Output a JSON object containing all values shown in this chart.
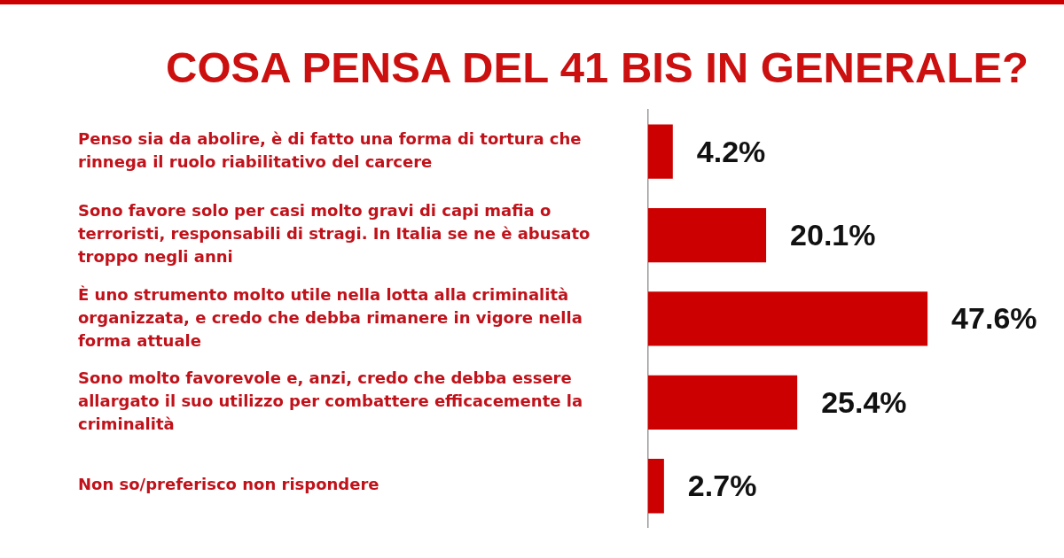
{
  "chart_data": {
    "type": "bar",
    "orientation": "horizontal",
    "title": "COSA PENSA DEL 41 BIS IN GENERALE?",
    "categories": [
      "Penso sia da abolire, è di fatto una forma di tortura che rinnega il ruolo riabilitativo del carcere",
      "Sono favore solo per casi molto gravi di capi mafia o terroristi, responsabili di stragi. In Italia se ne è abusato troppo negli anni",
      "È uno strumento molto utile nella lotta alla criminalità organizzata, e credo che debba rimanere in vigore nella forma attuale",
      "Sono molto favorevole e, anzi, credo che debba essere allargato il suo utilizzo per combattere efficacemente la criminalità",
      "Non so/preferisco non rispondere"
    ],
    "values": [
      4.2,
      20.1,
      47.6,
      25.4,
      2.7
    ],
    "color": "#cc0000",
    "value_labels": [
      "4.2%",
      "20.1%",
      "47.6%",
      "25.4%",
      "2.7%"
    ]
  }
}
